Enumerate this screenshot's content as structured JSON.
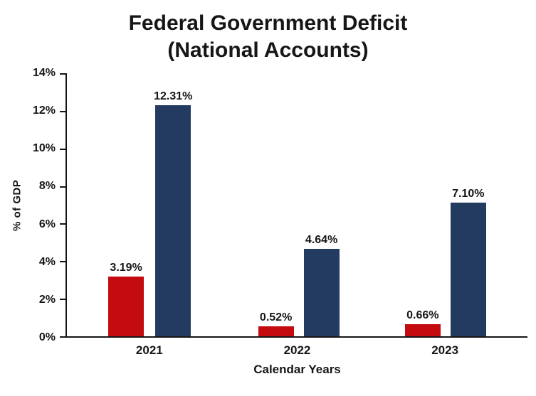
{
  "title": {
    "line1": "Federal Government Deficit",
    "line2": "(National Accounts)"
  },
  "chart_data": {
    "type": "bar",
    "title": "Federal Government Deficit (National Accounts)",
    "categories": [
      "2021",
      "2022",
      "2023"
    ],
    "series": [
      {
        "name": "red-series",
        "color": "#c30b10",
        "values": [
          3.19,
          0.52,
          0.66
        ],
        "labels": [
          "3.19%",
          "0.52%",
          "0.66%"
        ]
      },
      {
        "name": "navy-series",
        "color": "#243b61",
        "values": [
          12.31,
          4.64,
          7.1
        ],
        "labels": [
          "12.31%",
          "4.64%",
          "7.10%"
        ]
      }
    ],
    "xlabel": "Calendar Years",
    "ylabel": "% of GDP",
    "ylim": [
      0,
      14
    ],
    "y_ticks": [
      "0%",
      "2%",
      "4%",
      "6%",
      "8%",
      "10%",
      "12%",
      "14%"
    ],
    "legend": "none",
    "grid": false
  }
}
